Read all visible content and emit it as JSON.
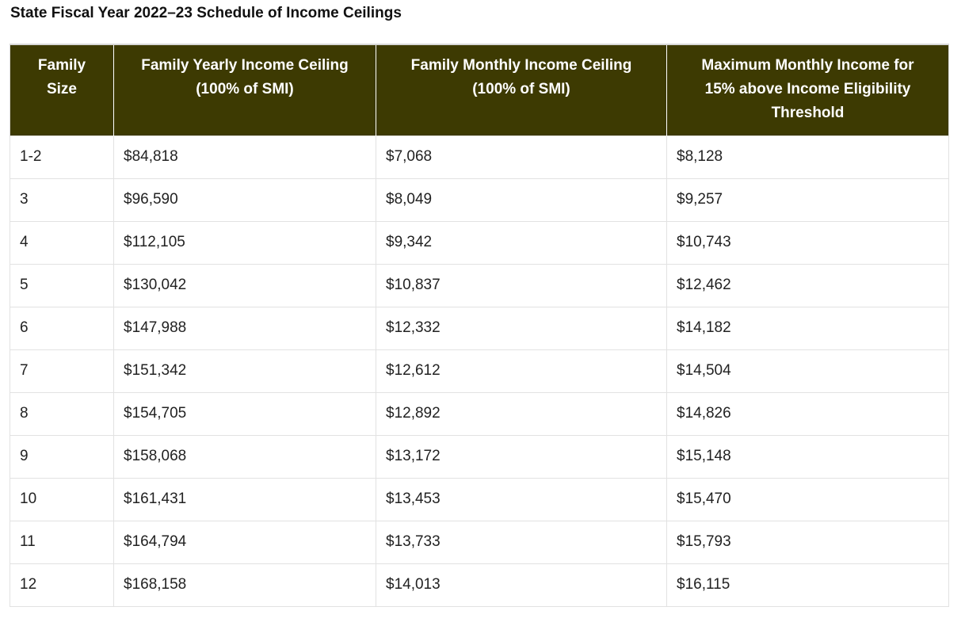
{
  "title": "State Fiscal Year 2022–23 Schedule of Income Ceilings",
  "table": {
    "headers": [
      [
        "Family",
        "Size"
      ],
      [
        "Family Yearly Income Ceiling",
        "(100% of SMI)"
      ],
      [
        "Family Monthly Income Ceiling",
        "(100% of SMI)"
      ],
      [
        "Maximum Monthly Income for",
        "15% above Income Eligibility",
        "Threshold"
      ]
    ],
    "rows": [
      [
        "1-2",
        "$84,818",
        "$7,068",
        "$8,128"
      ],
      [
        "3",
        "$96,590",
        "$8,049",
        "$9,257"
      ],
      [
        "4",
        "$112,105",
        "$9,342",
        "$10,743"
      ],
      [
        "5",
        "$130,042",
        "$10,837",
        "$12,462"
      ],
      [
        "6",
        "$147,988",
        "$12,332",
        "$14,182"
      ],
      [
        "7",
        "$151,342",
        "$12,612",
        "$14,504"
      ],
      [
        "8",
        "$154,705",
        "$12,892",
        "$14,826"
      ],
      [
        "9",
        "$158,068",
        "$13,172",
        "$15,148"
      ],
      [
        "10",
        "$161,431",
        "$13,453",
        "$15,470"
      ],
      [
        "11",
        "$164,794",
        "$13,733",
        "$15,793"
      ],
      [
        "12",
        "$168,158",
        "$14,013",
        "$16,115"
      ]
    ]
  },
  "colors": {
    "header_background": "#3d3a02",
    "header_text": "#ffffff",
    "border": "#e2e2e2"
  }
}
